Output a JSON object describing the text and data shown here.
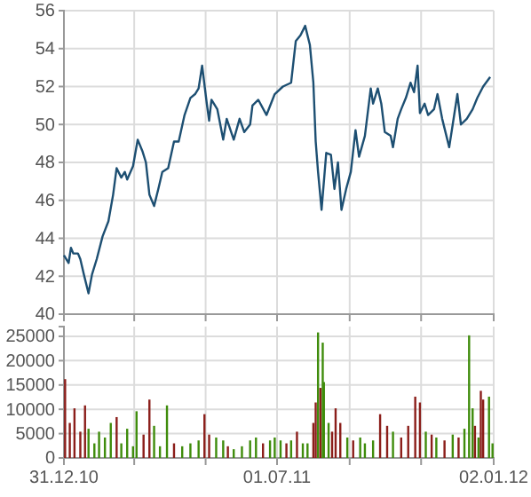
{
  "chart_data": [
    {
      "type": "line",
      "xlim": [
        "2010-12-31",
        "2012-01-02"
      ],
      "ylim": [
        40,
        56
      ],
      "yticks": [
        40,
        42,
        44,
        46,
        48,
        50,
        52,
        54,
        56
      ],
      "xticks": [
        {
          "value": "2010-12-31",
          "label": null
        },
        {
          "value": "2011-03-01",
          "label": null
        },
        {
          "value": "2011-05-01",
          "label": null
        },
        {
          "value": "2011-07-01",
          "label": null
        },
        {
          "value": "2011-09-01",
          "label": null
        },
        {
          "value": "2011-11-01",
          "label": null
        },
        {
          "value": "2012-01-02",
          "label": null
        }
      ],
      "tick_labels": "y",
      "grid": true,
      "series": [
        {
          "color": "#1d4f72",
          "x": [
            "2010-12-31",
            "2011-01-04",
            "2011-01-06",
            "2011-01-08",
            "2011-01-12",
            "2011-01-14",
            "2011-01-17",
            "2011-01-21",
            "2011-01-24",
            "2011-01-28",
            "2011-02-02",
            "2011-02-07",
            "2011-02-11",
            "2011-02-14",
            "2011-02-18",
            "2011-02-21",
            "2011-02-23",
            "2011-02-28",
            "2011-03-04",
            "2011-03-08",
            "2011-03-11",
            "2011-03-14",
            "2011-03-18",
            "2011-03-22",
            "2011-03-25",
            "2011-03-30",
            "2011-04-04",
            "2011-04-08",
            "2011-04-13",
            "2011-04-18",
            "2011-04-22",
            "2011-04-25",
            "2011-04-28",
            "2011-05-02",
            "2011-05-04",
            "2011-05-06",
            "2011-05-11",
            "2011-05-16",
            "2011-05-19",
            "2011-05-25",
            "2011-05-30",
            "2011-06-03",
            "2011-06-08",
            "2011-06-10",
            "2011-06-15",
            "2011-06-22",
            "2011-06-29",
            "2011-07-06",
            "2011-07-13",
            "2011-07-17",
            "2011-07-21",
            "2011-07-25",
            "2011-07-29",
            "2011-08-01",
            "2011-08-03",
            "2011-08-05",
            "2011-08-08",
            "2011-08-12",
            "2011-08-16",
            "2011-08-19",
            "2011-08-22",
            "2011-08-25",
            "2011-08-29",
            "2011-09-02",
            "2011-09-06",
            "2011-09-09",
            "2011-09-14",
            "2011-09-19",
            "2011-09-21",
            "2011-09-25",
            "2011-09-28",
            "2011-10-01",
            "2011-10-06",
            "2011-10-08",
            "2011-10-12",
            "2011-10-15",
            "2011-10-19",
            "2011-10-23",
            "2011-10-26",
            "2011-10-29",
            "2011-10-31",
            "2011-11-04",
            "2011-11-07",
            "2011-11-12",
            "2011-11-15",
            "2011-11-19",
            "2011-11-25",
            "2011-11-28",
            "2011-12-02",
            "2011-12-05",
            "2011-12-10",
            "2011-12-15",
            "2011-12-19",
            "2011-12-24",
            "2011-12-30"
          ],
          "values": [
            43.1,
            42.7,
            43.5,
            43.2,
            43.2,
            42.9,
            42.1,
            41.1,
            42.1,
            42.9,
            44.1,
            44.9,
            46.3,
            47.7,
            47.2,
            47.5,
            47.1,
            47.8,
            49.2,
            48.6,
            48.0,
            46.3,
            45.7,
            46.7,
            47.5,
            47.7,
            49.1,
            49.1,
            50.5,
            51.4,
            51.6,
            51.9,
            53.1,
            51.1,
            50.2,
            51.3,
            50.8,
            49.2,
            50.3,
            49.2,
            50.3,
            49.6,
            50.0,
            51.0,
            51.3,
            50.5,
            51.6,
            52.0,
            52.2,
            54.4,
            54.7,
            55.2,
            54.2,
            52.2,
            49.1,
            47.5,
            45.5,
            48.5,
            48.4,
            46.6,
            48.0,
            45.5,
            46.6,
            47.5,
            49.7,
            48.3,
            49.4,
            51.9,
            51.1,
            51.9,
            51.1,
            49.6,
            49.4,
            48.8,
            50.3,
            50.8,
            51.4,
            52.2,
            51.7,
            53.1,
            50.6,
            51.1,
            50.5,
            50.8,
            51.6,
            50.3,
            48.8,
            50.0,
            51.6,
            50.0,
            50.3,
            50.8,
            51.4,
            52.0,
            52.5
          ]
        }
      ]
    },
    {
      "type": "bar",
      "xlim": [
        "2010-12-31",
        "2012-01-02"
      ],
      "ylim": [
        0,
        27000
      ],
      "yticks": [
        0,
        5000,
        10000,
        15000,
        20000,
        25000
      ],
      "xticks": [
        {
          "value": "2010-12-31",
          "label": "31.12.10"
        },
        {
          "value": "2011-03-01",
          "label": null
        },
        {
          "value": "2011-05-01",
          "label": null
        },
        {
          "value": "2011-07-01",
          "label": "01.07.11"
        },
        {
          "value": "2011-09-01",
          "label": null
        },
        {
          "value": "2011-11-01",
          "label": null
        },
        {
          "value": "2012-01-02",
          "label": "02.01.12"
        }
      ],
      "grid": true,
      "x": [
        "2011-01-01",
        "2011-01-05",
        "2011-01-09",
        "2011-01-14",
        "2011-01-18",
        "2011-01-21",
        "2011-01-26",
        "2011-01-30",
        "2011-02-04",
        "2011-02-09",
        "2011-02-14",
        "2011-02-18",
        "2011-02-23",
        "2011-02-28",
        "2011-03-03",
        "2011-03-09",
        "2011-03-14",
        "2011-03-18",
        "2011-03-23",
        "2011-03-29",
        "2011-04-04",
        "2011-04-11",
        "2011-04-18",
        "2011-04-25",
        "2011-04-30",
        "2011-05-04",
        "2011-05-10",
        "2011-05-16",
        "2011-05-20",
        "2011-05-25",
        "2011-06-01",
        "2011-06-08",
        "2011-06-13",
        "2011-06-19",
        "2011-06-25",
        "2011-06-29",
        "2011-07-04",
        "2011-07-09",
        "2011-07-13",
        "2011-07-18",
        "2011-07-23",
        "2011-07-27",
        "2011-08-01",
        "2011-08-03",
        "2011-08-05",
        "2011-08-07",
        "2011-08-09",
        "2011-08-10",
        "2011-08-14",
        "2011-08-17",
        "2011-08-20",
        "2011-08-24",
        "2011-08-30",
        "2011-09-04",
        "2011-09-10",
        "2011-09-14",
        "2011-09-21",
        "2011-09-27",
        "2011-10-03",
        "2011-10-08",
        "2011-10-15",
        "2011-10-21",
        "2011-10-27",
        "2011-10-31",
        "2011-11-05",
        "2011-11-10",
        "2011-11-14",
        "2011-11-21",
        "2011-11-28",
        "2011-12-03",
        "2011-12-08",
        "2011-12-12",
        "2011-12-15",
        "2011-12-17",
        "2011-12-20",
        "2011-12-22",
        "2011-12-24",
        "2011-12-29",
        "2012-01-01"
      ],
      "values": [
        16200,
        7200,
        10200,
        5400,
        10800,
        6000,
        3000,
        5400,
        4200,
        7200,
        8400,
        3000,
        6000,
        2400,
        9600,
        4800,
        12000,
        6600,
        2400,
        10800,
        3000,
        2400,
        3000,
        3600,
        9000,
        4800,
        4200,
        3600,
        2400,
        1800,
        2400,
        3600,
        4200,
        3000,
        3600,
        4200,
        3600,
        3000,
        3600,
        5400,
        3000,
        3000,
        7200,
        11400,
        25800,
        14400,
        23700,
        15600,
        7200,
        5400,
        10200,
        7200,
        4200,
        3600,
        4200,
        3000,
        3600,
        9000,
        6600,
        5400,
        4200,
        6600,
        12600,
        11400,
        5400,
        4800,
        4200,
        3600,
        4800,
        4200,
        6000,
        25200,
        10200,
        6600,
        4200,
        13800,
        12000,
        12600,
        3000
      ],
      "colors": [
        "#8b1e1a",
        "#8b1e1a",
        "#8b1e1a",
        "#8b1e1a",
        "#8b1e1a",
        "#3f8c0c",
        "#3f8c0c",
        "#3f8c0c",
        "#3f8c0c",
        "#3f8c0c",
        "#8b1e1a",
        "#3f8c0c",
        "#3f8c0c",
        "#3f8c0c",
        "#3f8c0c",
        "#8b1e1a",
        "#8b1e1a",
        "#3f8c0c",
        "#3f8c0c",
        "#3f8c0c",
        "#8b1e1a",
        "#3f8c0c",
        "#3f8c0c",
        "#3f8c0c",
        "#8b1e1a",
        "#8b1e1a",
        "#3f8c0c",
        "#3f8c0c",
        "#8b1e1a",
        "#3f8c0c",
        "#3f8c0c",
        "#3f8c0c",
        "#3f8c0c",
        "#8b1e1a",
        "#3f8c0c",
        "#3f8c0c",
        "#3f8c0c",
        "#8b1e1a",
        "#3f8c0c",
        "#8b1e1a",
        "#3f8c0c",
        "#3f8c0c",
        "#8b1e1a",
        "#8b1e1a",
        "#3f8c0c",
        "#8b1e1a",
        "#3f8c0c",
        "#3f8c0c",
        "#3f8c0c",
        "#8b1e1a",
        "#8b1e1a",
        "#8b1e1a",
        "#3f8c0c",
        "#8b1e1a",
        "#3f8c0c",
        "#3f8c0c",
        "#3f8c0c",
        "#8b1e1a",
        "#8b1e1a",
        "#3f8c0c",
        "#8b1e1a",
        "#8b1e1a",
        "#8b1e1a",
        "#8b1e1a",
        "#3f8c0c",
        "#8b1e1a",
        "#3f8c0c",
        "#8b1e1a",
        "#3f8c0c",
        "#8b1e1a",
        "#3f8c0c",
        "#3f8c0c",
        "#3f8c0c",
        "#8b1e1a",
        "#3f8c0c",
        "#8b1e1a",
        "#8b1e1a",
        "#3f8c0c",
        "#3f8c0c"
      ]
    }
  ]
}
